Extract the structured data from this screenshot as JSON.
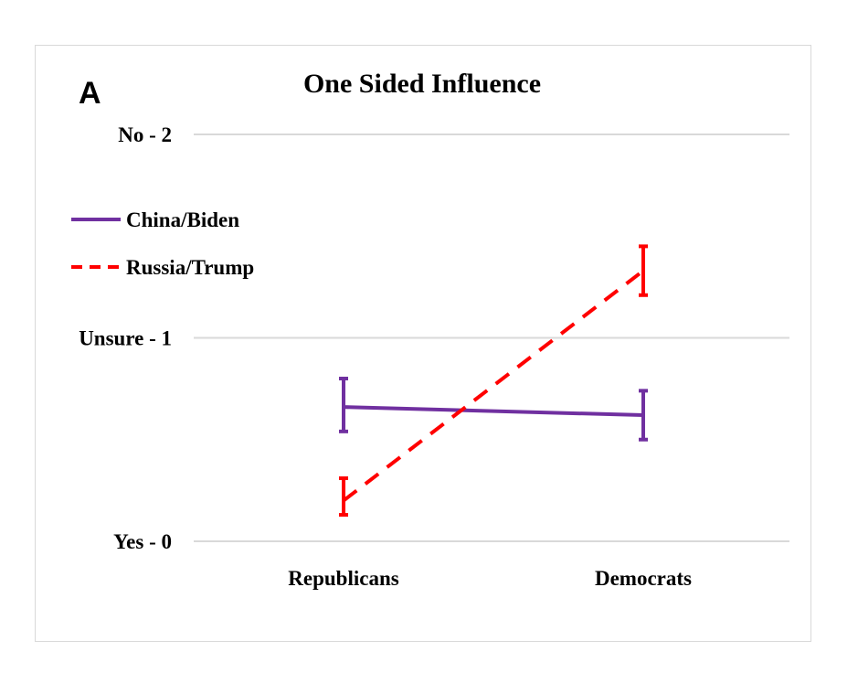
{
  "panel_letter": "A",
  "chart_data": {
    "type": "line",
    "title": "One Sided Influence",
    "categories": [
      "Republicans",
      "Democrats"
    ],
    "ylim": [
      0,
      2
    ],
    "yticks": [
      {
        "value": 0,
        "label": "Yes - 0"
      },
      {
        "value": 1,
        "label": "Unsure - 1"
      },
      {
        "value": 2,
        "label": "No - 2"
      }
    ],
    "grid": true,
    "legend_position": "left",
    "series": [
      {
        "name": "China/Biden",
        "color": "#7030a0",
        "style": "solid",
        "values": [
          0.66,
          0.62
        ],
        "err_low": [
          0.54,
          0.5
        ],
        "err_high": [
          0.8,
          0.74
        ]
      },
      {
        "name": "Russia/Trump",
        "color": "#ff0000",
        "style": "dashed",
        "values": [
          0.2,
          1.33
        ],
        "err_low": [
          0.13,
          1.21
        ],
        "err_high": [
          0.31,
          1.45
        ]
      }
    ]
  }
}
